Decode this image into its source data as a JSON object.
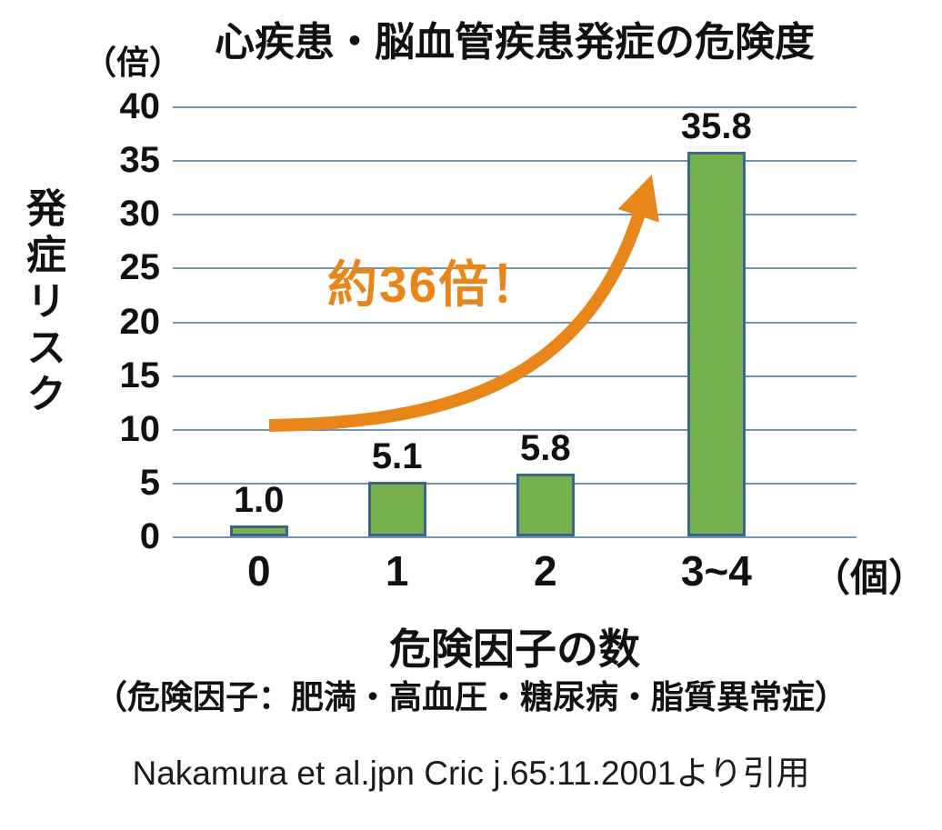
{
  "page": {
    "background": "#ffffff"
  },
  "chart_data": {
    "type": "bar",
    "title": "心疾患・脳血管疾患発症の危険度",
    "categories": [
      "0",
      "1",
      "2",
      "3~4"
    ],
    "values": [
      1.0,
      5.1,
      5.8,
      35.8
    ],
    "value_labels": [
      "1.0",
      "5.1",
      "5.8",
      "35.8"
    ],
    "xlabel": "危険因子の数",
    "x_unit": "（個）",
    "ylabel": "発症リスク",
    "y_unit": "（倍）",
    "ylim": [
      0,
      40
    ],
    "y_ticks": [
      40,
      35,
      30,
      25,
      20,
      15,
      10,
      5,
      0
    ],
    "grid": "horizontal",
    "legend": "none",
    "annotation": {
      "text": "約36倍！",
      "color": "#E9861A"
    },
    "colors": {
      "bar_fill": "#75B14C",
      "bar_border": "#3E648C",
      "gridline": "#6E96B8",
      "arrow": "#E9861A",
      "text": "#111111"
    },
    "footnote": "（危険因子：肥満・高血圧・糖尿病・脂質異常症）",
    "citation": "Nakamura et al.jpn Cric j.65:11.2001より引用"
  }
}
